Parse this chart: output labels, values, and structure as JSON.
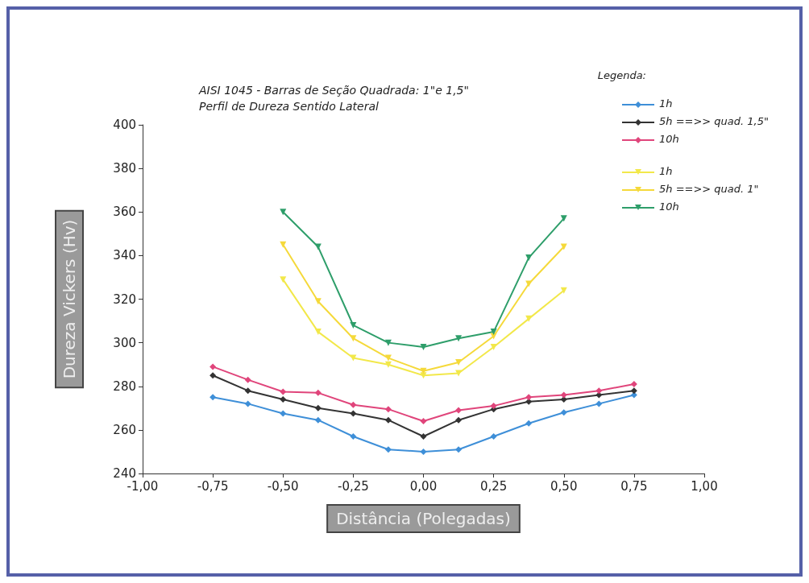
{
  "chart_data": {
    "type": "line",
    "title": "AISI 1045 - Barras de Seção Quadrada: 1\"e 1,5\"",
    "subtitle": "Perfil de Dureza Sentido Lateral",
    "xlabel": "Distância (Polegadas)",
    "ylabel": "Dureza Vickers (Hv)",
    "legend_title": "Legenda:",
    "legend": "top right",
    "grid": false,
    "line_style": "solid",
    "xlim": [
      -1,
      1
    ],
    "ylim": [
      240,
      400
    ],
    "xticks": [
      {
        "value": -1,
        "label": "-1,00"
      },
      {
        "value": -0.75,
        "label": "-0,75"
      },
      {
        "value": -0.5,
        "label": "-0,50"
      },
      {
        "value": -0.25,
        "label": "-0,25"
      },
      {
        "value": 0,
        "label": "0,00"
      },
      {
        "value": 0.25,
        "label": "0,25"
      },
      {
        "value": 0.5,
        "label": "0,50"
      },
      {
        "value": 0.75,
        "label": "0,75"
      },
      {
        "value": 1,
        "label": "1,00"
      }
    ],
    "yticks": [
      240,
      260,
      280,
      300,
      320,
      340,
      360,
      380,
      400
    ],
    "series": [
      {
        "name": "1h",
        "color": "#3e8fd8",
        "marker": "diamond",
        "x": [
          -0.75,
          -0.625,
          -0.5,
          -0.375,
          -0.25,
          -0.125,
          0,
          0.125,
          0.25,
          0.375,
          0.5,
          0.625,
          0.75
        ],
        "values": [
          275,
          272,
          267.5,
          264.5,
          257,
          251,
          250,
          251,
          257,
          263,
          268,
          272,
          276
        ]
      },
      {
        "name": "5h ==>> quad. 1,5\"",
        "color": "#333333",
        "marker": "diamond",
        "x": [
          -0.75,
          -0.625,
          -0.5,
          -0.375,
          -0.25,
          -0.125,
          0,
          0.125,
          0.25,
          0.375,
          0.5,
          0.625,
          0.75
        ],
        "values": [
          285,
          278,
          274,
          270,
          267.5,
          264.5,
          257,
          264.5,
          269.5,
          273,
          274,
          276,
          278
        ]
      },
      {
        "name": "10h",
        "color": "#e0457b",
        "marker": "diamond",
        "x": [
          -0.75,
          -0.625,
          -0.5,
          -0.375,
          -0.25,
          -0.125,
          0,
          0.125,
          0.25,
          0.375,
          0.5,
          0.625,
          0.75
        ],
        "values": [
          289,
          283,
          277.5,
          277,
          271.5,
          269.5,
          264,
          269,
          271,
          275,
          276,
          278,
          281
        ]
      },
      {
        "name": "1h",
        "color": "#f2e84a",
        "marker": "triangle",
        "x": [
          -0.5,
          -0.375,
          -0.25,
          -0.125,
          0,
          0.125,
          0.25,
          0.375,
          0.5
        ],
        "values": [
          329,
          305,
          293,
          290,
          285,
          286,
          298,
          311,
          324
        ]
      },
      {
        "name": "5h ==>> quad. 1\"",
        "color": "#f5d93a",
        "marker": "triangle",
        "x": [
          -0.5,
          -0.375,
          -0.25,
          -0.125,
          0,
          0.125,
          0.25,
          0.375,
          0.5
        ],
        "values": [
          345,
          319,
          302,
          293,
          287,
          291,
          303,
          327,
          344
        ]
      },
      {
        "name": "10h",
        "color": "#2e9e6a",
        "marker": "triangle",
        "x": [
          -0.5,
          -0.375,
          -0.25,
          -0.125,
          0,
          0.125,
          0.25,
          0.375,
          0.5
        ],
        "values": [
          360,
          344,
          308,
          300,
          298,
          302,
          305,
          339,
          357
        ]
      }
    ]
  }
}
